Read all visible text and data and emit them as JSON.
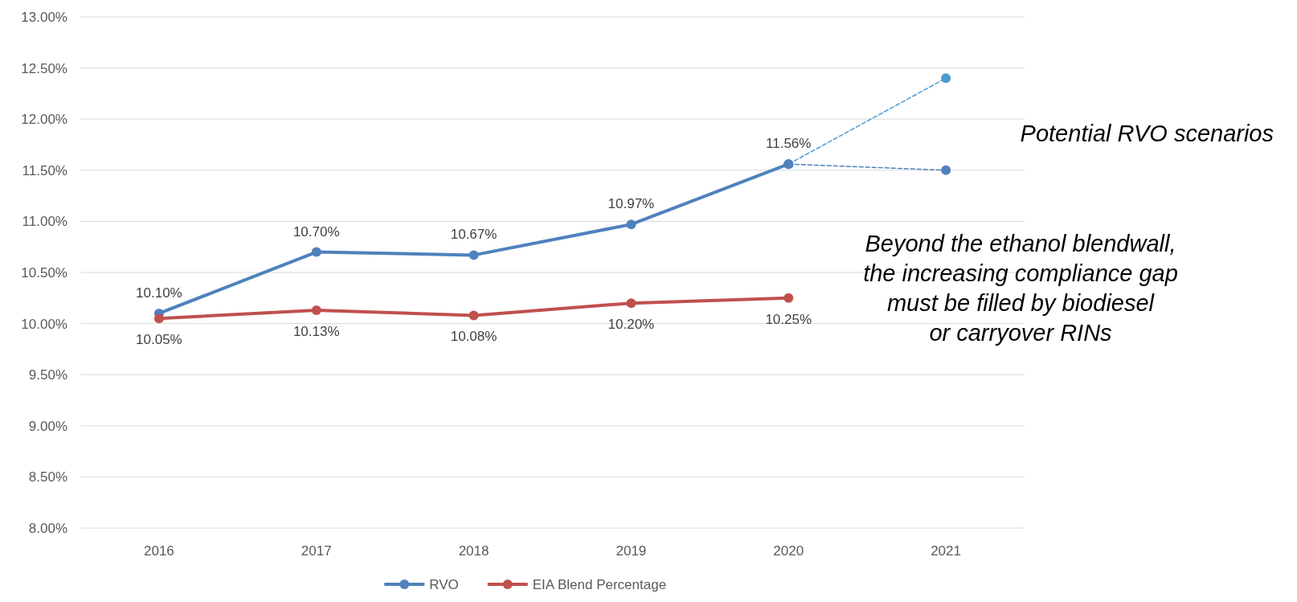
{
  "chart_data": {
    "type": "line",
    "categories": [
      "2016",
      "2017",
      "2018",
      "2019",
      "2020",
      "2021"
    ],
    "series": [
      {
        "name": "RVO",
        "color": "#4f81bd",
        "values": [
          10.1,
          10.7,
          10.67,
          10.97,
          11.56,
          null
        ],
        "value_labels": [
          "10.10%",
          "10.70%",
          "10.67%",
          "10.97%",
          "11.56%",
          null
        ]
      },
      {
        "name": "EIA Blend Percentage",
        "color": "#c0504d",
        "values": [
          10.05,
          10.13,
          10.08,
          10.2,
          10.25,
          null
        ],
        "value_labels": [
          "10.05%",
          "10.13%",
          "10.08%",
          "10.20%",
          "10.25%",
          null
        ]
      },
      {
        "color": "#4a9bd0",
        "line_style": "dashed",
        "values": [
          null,
          null,
          null,
          null,
          11.56,
          12.4
        ]
      },
      {
        "color": "#4f81bd",
        "line_style": "dashed",
        "values": [
          null,
          null,
          null,
          null,
          11.56,
          11.5
        ]
      }
    ],
    "ylim": [
      8,
      13
    ],
    "yticks": [
      {
        "value": 8,
        "label": "8.00%"
      },
      {
        "value": 8.5,
        "label": "8.50%"
      },
      {
        "value": 9,
        "label": "9.00%"
      },
      {
        "value": 9.5,
        "label": "9.50%"
      },
      {
        "value": 10,
        "label": "10.00%"
      },
      {
        "value": 10.5,
        "label": "10.50%"
      },
      {
        "value": 11,
        "label": "11.00%"
      },
      {
        "value": 11.5,
        "label": "11.50%"
      },
      {
        "value": 12,
        "label": "12.00%"
      },
      {
        "value": 12.5,
        "label": "12.50%"
      },
      {
        "value": 13,
        "label": "13.00%"
      }
    ],
    "grid": "y",
    "legend": "bottom",
    "marker": "circle",
    "line_style": "solid",
    "annotations": [
      "Potential RVO scenarios",
      "Beyond the ethanol blendwall,\nthe increasing compliance gap\nmust be filled by biodiesel\nor carryover RINs"
    ]
  }
}
